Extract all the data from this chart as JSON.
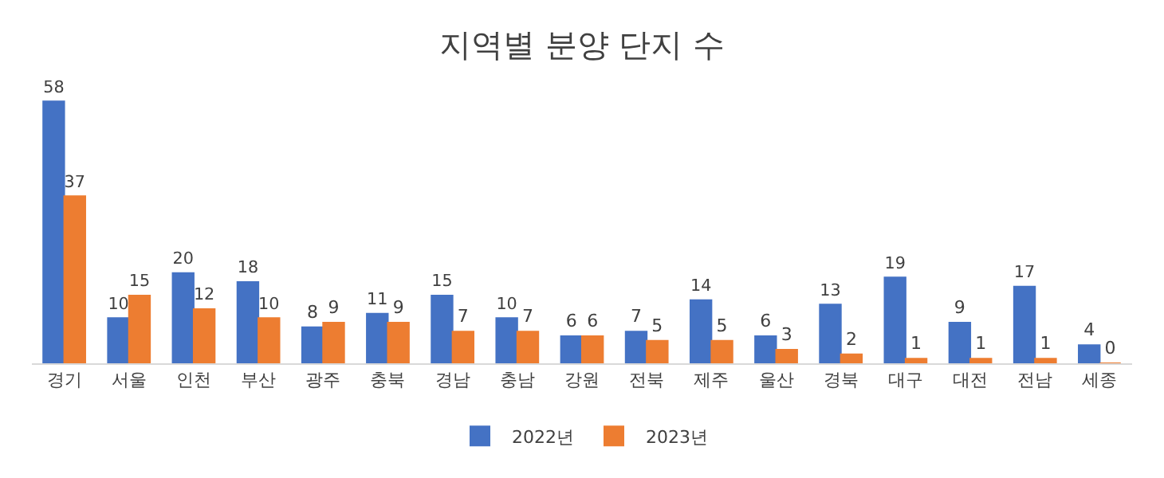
{
  "chart_data": {
    "type": "bar",
    "title": "지역별 분양 단지 수",
    "categories": [
      "경기",
      "서울",
      "인천",
      "부산",
      "광주",
      "충북",
      "경남",
      "충남",
      "강원",
      "전북",
      "제주",
      "울산",
      "경북",
      "대구",
      "대전",
      "전남",
      "세종"
    ],
    "series": [
      {
        "name": "2022년",
        "color": "#4472c4",
        "values": [
          58,
          10,
          20,
          18,
          8,
          11,
          15,
          10,
          6,
          7,
          14,
          6,
          13,
          19,
          9,
          17,
          4
        ]
      },
      {
        "name": "2023년",
        "color": "#ed7d31",
        "values": [
          37,
          15,
          12,
          10,
          9,
          9,
          7,
          7,
          6,
          5,
          5,
          3,
          2,
          1,
          1,
          1,
          0
        ]
      }
    ],
    "tick_labels": "x",
    "legend": "bottom",
    "data_labels": true
  }
}
